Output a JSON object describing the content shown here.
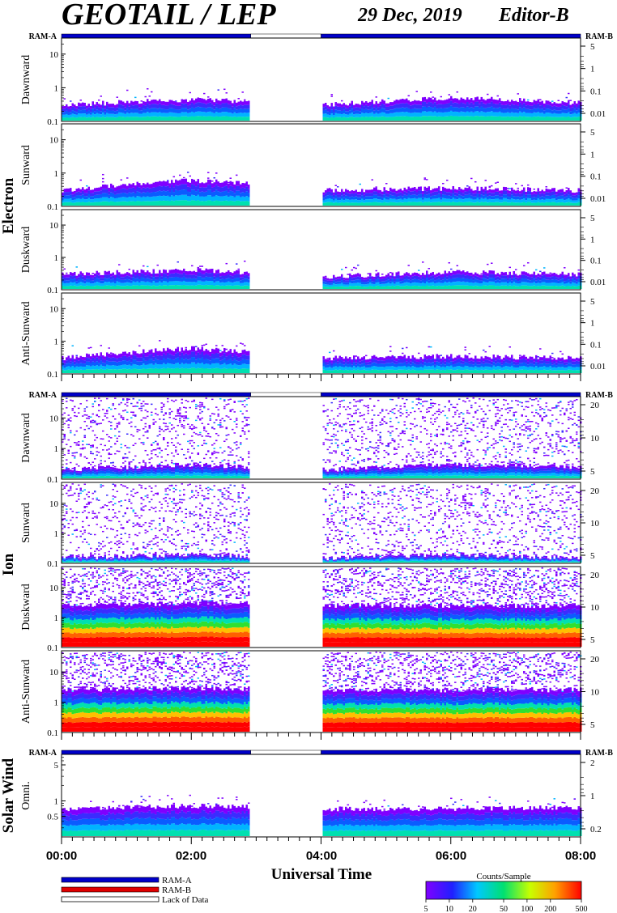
{
  "header": {
    "title": "GEOTAIL / LEP",
    "date": "29 Dec, 2019",
    "editor": "Editor-B"
  },
  "colors": {
    "ram_a": "#0000c8",
    "ram_b": "#e00000",
    "no_data": "#ffffff"
  },
  "ram_labels": {
    "left": "RAM-A",
    "right": "RAM-B"
  },
  "groups": [
    {
      "label": "Electron",
      "ram_bar": [
        {
          "from": "00:00",
          "to": "02:55",
          "state": "RAM-A"
        },
        {
          "from": "02:55",
          "to": "04:00",
          "state": "Lack of Data"
        },
        {
          "from": "04:00",
          "to": "08:00",
          "state": "RAM-A"
        }
      ]
    },
    {
      "label": "Ion",
      "ram_bar": [
        {
          "from": "00:00",
          "to": "02:55",
          "state": "RAM-A"
        },
        {
          "from": "02:55",
          "to": "04:00",
          "state": "Lack of Data"
        },
        {
          "from": "04:00",
          "to": "08:00",
          "state": "RAM-A"
        }
      ]
    },
    {
      "label": "Solar Wind",
      "ram_bar": [
        {
          "from": "00:00",
          "to": "02:55",
          "state": "RAM-A"
        },
        {
          "from": "02:55",
          "to": "04:00",
          "state": "Lack of Data"
        },
        {
          "from": "04:00",
          "to": "08:00",
          "state": "RAM-A"
        }
      ]
    }
  ],
  "panels": [
    {
      "group": "Electron",
      "label": "Dawnward",
      "left_ticks": [
        "10",
        "1",
        "0.1"
      ],
      "right_ticks": [
        "5",
        "1",
        "0.1",
        "0.01"
      ]
    },
    {
      "group": "Electron",
      "label": "Sunward",
      "left_ticks": [
        "10",
        "1",
        "0.1"
      ],
      "right_ticks": [
        "5",
        "1",
        "0.1",
        "0.01"
      ]
    },
    {
      "group": "Electron",
      "label": "Duskward",
      "left_ticks": [
        "10",
        "1",
        "0.1"
      ],
      "right_ticks": [
        "5",
        "1",
        "0.1",
        "0.01"
      ]
    },
    {
      "group": "Electron",
      "label": "Anti-Sunward",
      "left_ticks": [
        "10",
        "1",
        "0.1"
      ],
      "right_ticks": [
        "5",
        "1",
        "0.1",
        "0.01"
      ]
    },
    {
      "group": "Ion",
      "label": "Dawnward",
      "left_ticks": [
        "10",
        "1",
        "0.1"
      ],
      "right_ticks": [
        "20",
        "10",
        "5"
      ]
    },
    {
      "group": "Ion",
      "label": "Sunward",
      "left_ticks": [
        "10",
        "1",
        "0.1"
      ],
      "right_ticks": [
        "20",
        "10",
        "5"
      ]
    },
    {
      "group": "Ion",
      "label": "Duskward",
      "left_ticks": [
        "10",
        "1",
        "0.1"
      ],
      "right_ticks": [
        "20",
        "10",
        "5"
      ]
    },
    {
      "group": "Ion",
      "label": "Anti-Sunward",
      "left_ticks": [
        "10",
        "1",
        "0.1"
      ],
      "right_ticks": [
        "20",
        "10",
        "5"
      ]
    },
    {
      "group": "Solar Wind",
      "label": "Omni.",
      "left_ticks": [
        "5",
        "1",
        "0.5"
      ],
      "right_ticks": [
        "2",
        "1",
        "0.2"
      ]
    }
  ],
  "legend": {
    "items": [
      "RAM-A",
      "RAM-B",
      "Lack of Data"
    ],
    "colorbar_title": "Counts/Sample",
    "colorbar_ticks": [
      "5",
      "10",
      "20",
      "50",
      "100",
      "200",
      "500"
    ]
  },
  "chart_data": {
    "type": "heatmap",
    "xlabel": "Universal Time",
    "x_ticks": [
      "00:00",
      "02:00",
      "04:00",
      "06:00",
      "08:00"
    ],
    "xlim": [
      "00:00",
      "08:00"
    ],
    "data_gap": {
      "from": "02:55",
      "to": "04:00"
    },
    "color_scale": {
      "type": "log",
      "range": [
        5,
        500
      ],
      "label": "Counts/Sample"
    },
    "panels": [
      {
        "group": "Electron",
        "name": "Dawnward",
        "ylim": [
          0.1,
          30
        ],
        "yscale": "log",
        "band_top": [
          0.3,
          0.45,
          0.3,
          0.5,
          0.35
        ]
      },
      {
        "group": "Electron",
        "name": "Sunward",
        "ylim": [
          0.1,
          30
        ],
        "yscale": "log",
        "band_top": [
          0.3,
          0.6,
          0.3,
          0.35,
          0.3
        ]
      },
      {
        "group": "Electron",
        "name": "Duskward",
        "ylim": [
          0.1,
          30
        ],
        "yscale": "log",
        "band_top": [
          0.3,
          0.4,
          0.25,
          0.35,
          0.3
        ]
      },
      {
        "group": "Electron",
        "name": "Anti-Sunward",
        "ylim": [
          0.1,
          30
        ],
        "yscale": "log",
        "band_top": [
          0.3,
          0.6,
          0.3,
          0.35,
          0.3
        ]
      },
      {
        "group": "Ion",
        "name": "Dawnward",
        "ylim": [
          0.1,
          50
        ],
        "yscale": "log",
        "band_top": [
          0.2,
          0.3,
          0.2,
          0.3,
          0.25
        ]
      },
      {
        "group": "Ion",
        "name": "Sunward",
        "ylim": [
          0.1,
          50
        ],
        "yscale": "log",
        "band_top": [
          0.15,
          0.2,
          0.15,
          0.2,
          0.15
        ]
      },
      {
        "group": "Ion",
        "name": "Duskward",
        "ylim": [
          0.1,
          50
        ],
        "yscale": "log",
        "band_top": [
          2.5,
          3,
          2.5,
          2.5,
          2.5
        ]
      },
      {
        "group": "Ion",
        "name": "Anti-Sunward",
        "ylim": [
          0.1,
          50
        ],
        "yscale": "log",
        "band_top": [
          2.5,
          3,
          2.5,
          2.5,
          2.5
        ]
      },
      {
        "group": "Solar Wind",
        "name": "Omni.",
        "ylim": [
          0.2,
          8
        ],
        "yscale": "log",
        "band_top": [
          0.7,
          0.8,
          0.7,
          0.7,
          0.75
        ]
      }
    ]
  }
}
